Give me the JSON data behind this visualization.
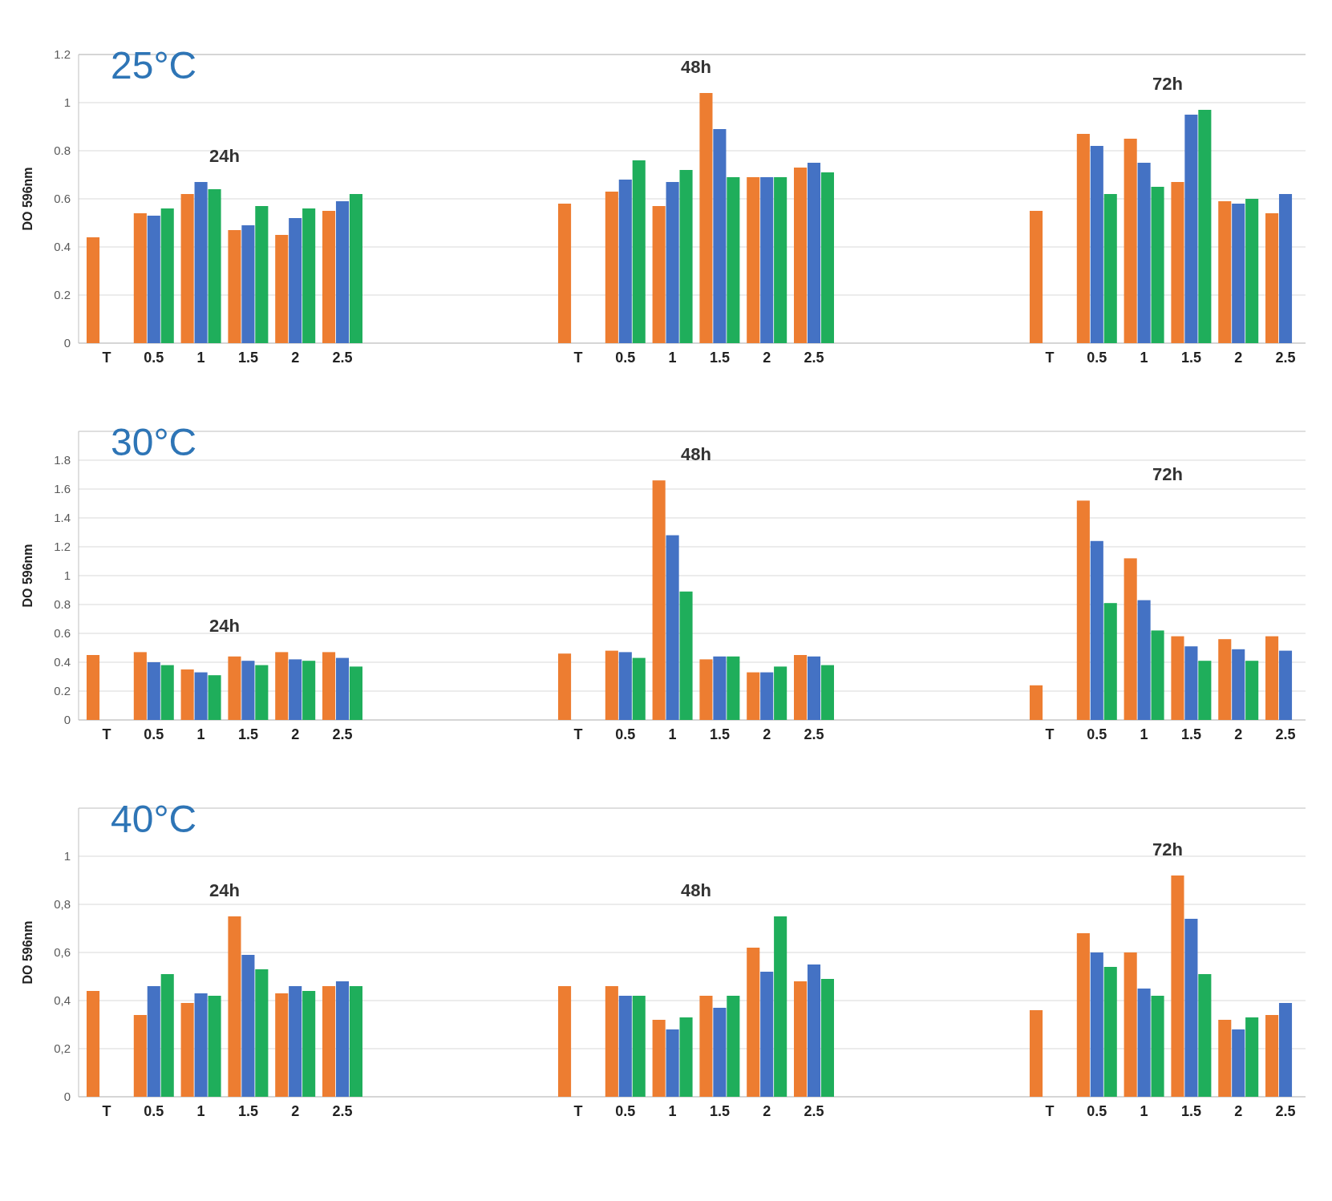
{
  "chart_data": [
    {
      "type": "bar",
      "title": "25°C",
      "ylabel": "DO 596nm",
      "categories": [
        "T",
        "0.5",
        "1",
        "1.5",
        "2",
        "2.5",
        null,
        null,
        null,
        null,
        "T",
        "0.5",
        "1",
        "1.5",
        "2",
        "2.5",
        null,
        null,
        null,
        null,
        "T",
        "0.5",
        "1",
        "1.5",
        "2",
        "2.5"
      ],
      "series": [
        {
          "color": "#ed7d31",
          "values": [
            0.44,
            0.54,
            0.62,
            0.47,
            0.45,
            0.55,
            null,
            null,
            null,
            null,
            0.58,
            0.63,
            0.57,
            1.04,
            0.69,
            0.73,
            null,
            null,
            null,
            null,
            0.55,
            0.87,
            0.85,
            0.67,
            0.59,
            0.54
          ]
        },
        {
          "color": "#4472c4",
          "values": [
            null,
            0.53,
            0.67,
            0.49,
            0.52,
            0.59,
            null,
            null,
            null,
            null,
            null,
            0.68,
            0.67,
            0.89,
            0.69,
            0.75,
            null,
            null,
            null,
            null,
            null,
            0.82,
            0.75,
            0.95,
            0.58,
            0.62
          ]
        },
        {
          "color": "#1fae5b",
          "values": [
            null,
            0.56,
            0.64,
            0.57,
            0.56,
            0.62,
            null,
            null,
            null,
            null,
            null,
            0.76,
            0.72,
            0.69,
            0.69,
            0.71,
            null,
            null,
            null,
            null,
            null,
            0.62,
            0.65,
            0.97,
            0.6,
            null
          ]
        }
      ],
      "ylim": [
        0,
        1.2
      ],
      "yticks": [
        0,
        0.2,
        0.4,
        0.6,
        0.8,
        1,
        1.2
      ],
      "grid": "y",
      "annotations": [
        "24h",
        "48h",
        "72h"
      ]
    },
    {
      "type": "bar",
      "title": "30°C",
      "ylabel": "DO 596nm",
      "categories": [
        "T",
        "0.5",
        "1",
        "1.5",
        "2",
        "2.5",
        null,
        null,
        null,
        null,
        "T",
        "0.5",
        "1",
        "1.5",
        "2",
        "2.5",
        null,
        null,
        null,
        null,
        "T",
        "0.5",
        "1",
        "1.5",
        "2",
        "2.5"
      ],
      "series": [
        {
          "color": "#ed7d31",
          "values": [
            0.45,
            0.47,
            0.35,
            0.44,
            0.47,
            0.47,
            null,
            null,
            null,
            null,
            0.46,
            0.48,
            1.66,
            0.42,
            0.33,
            0.45,
            null,
            null,
            null,
            null,
            0.24,
            1.52,
            1.12,
            0.58,
            0.56,
            0.58
          ]
        },
        {
          "color": "#4472c4",
          "values": [
            null,
            0.4,
            0.33,
            0.41,
            0.42,
            0.43,
            null,
            null,
            null,
            null,
            null,
            0.47,
            1.28,
            0.44,
            0.33,
            0.44,
            null,
            null,
            null,
            null,
            null,
            1.24,
            0.83,
            0.51,
            0.49,
            0.48
          ]
        },
        {
          "color": "#1fae5b",
          "values": [
            null,
            0.38,
            0.31,
            0.38,
            0.41,
            0.37,
            null,
            null,
            null,
            null,
            null,
            0.43,
            0.89,
            0.44,
            0.37,
            0.38,
            null,
            null,
            null,
            null,
            null,
            0.81,
            0.62,
            0.41,
            0.41,
            null
          ]
        }
      ],
      "ylim": [
        0,
        2
      ],
      "yticks": [
        0,
        0.2,
        0.4,
        0.6,
        0.8,
        1,
        1.2,
        1.4,
        1.6,
        1.8
      ],
      "grid": "y",
      "annotations": [
        "24h",
        "48h",
        "72h"
      ]
    },
    {
      "type": "bar",
      "title": "40°C",
      "ylabel": "DO 596nm",
      "categories": [
        "T",
        "0.5",
        "1",
        "1.5",
        "2",
        "2.5",
        null,
        null,
        null,
        null,
        "T",
        "0.5",
        "1",
        "1.5",
        "2",
        "2.5",
        null,
        null,
        null,
        null,
        "T",
        "0.5",
        "1",
        "1.5",
        "2",
        "2.5"
      ],
      "series": [
        {
          "color": "#ed7d31",
          "values": [
            0.44,
            0.34,
            0.39,
            0.75,
            0.43,
            0.46,
            null,
            null,
            null,
            null,
            0.46,
            0.46,
            0.32,
            0.42,
            0.62,
            0.48,
            null,
            null,
            null,
            null,
            0.36,
            0.68,
            0.6,
            0.92,
            0.32,
            0.34
          ]
        },
        {
          "color": "#4472c4",
          "values": [
            null,
            0.46,
            0.43,
            0.59,
            0.46,
            0.48,
            null,
            null,
            null,
            null,
            null,
            0.42,
            0.28,
            0.37,
            0.52,
            0.55,
            null,
            null,
            null,
            null,
            null,
            0.6,
            0.45,
            0.74,
            0.28,
            0.39
          ]
        },
        {
          "color": "#1fae5b",
          "values": [
            null,
            0.51,
            0.42,
            0.53,
            0.44,
            0.46,
            null,
            null,
            null,
            null,
            null,
            0.42,
            0.33,
            0.42,
            0.75,
            0.49,
            null,
            null,
            null,
            null,
            null,
            0.54,
            0.42,
            0.51,
            0.33,
            null
          ]
        }
      ],
      "ylim": [
        0,
        1.2
      ],
      "yticks": [
        {
          "value": 0,
          "label": "0"
        },
        {
          "value": 0.2,
          "label": "0,2"
        },
        {
          "value": 0.4,
          "label": "0,4"
        },
        {
          "value": 0.6,
          "label": "0,6"
        },
        {
          "value": 0.8,
          "label": "0,8"
        },
        {
          "value": 1,
          "label": "1"
        }
      ],
      "grid": "y",
      "annotations": [
        "24h",
        "48h",
        "72h"
      ]
    }
  ]
}
